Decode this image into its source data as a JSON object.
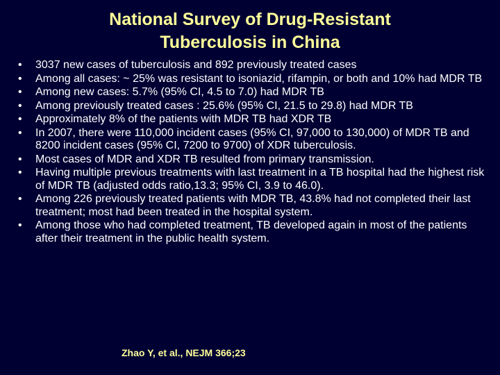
{
  "title": {
    "line1": "National Survey of Drug-Resistant",
    "line2": "Tuberculosis in China"
  },
  "bullet_symbol": "•",
  "bullets": [
    "3037 new cases of tuberculosis and 892 previously treated cases",
    "Among all cases: ~  25% was resistant to isoniazid, rifampin, or both and 10% had MDR TB",
    "Among new cases: 5.7% (95% CI, 4.5 to 7.0)  had MDR TB",
    "Among previously treated cases : 25.6% (95% CI, 21.5 to 29.8) had MDR TB",
    "Approximately 8% of the patients with MDR TB had XDR TB",
    "In 2007, there were 110,000 incident cases (95% CI, 97,000 to 130,000) of MDR TB and 8200 incident cases (95% CI, 7200 to 9700) of XDR tuberculosis.",
    "Most  cases of MDR and XDR TB resulted from primary transmission.",
    "Having multiple previous treatments with last treatment in a TB hospital had the highest risk of MDR TB (adjusted odds ratio,13.3; 95% CI, 3.9 to 46.0).",
    "Among 226 previously treated patients with MDR TB, 43.8% had not completed their last treatment; most had been treated in the hospital system.",
    "Among those who had completed treatment, TB developed again in most of the patients after their treatment in the public health system."
  ],
  "citation": "Zhao Y, et al., NEJM 366;23",
  "colors": {
    "background": "#000033",
    "title": "#ffff99",
    "body_text": "#ffffff",
    "citation": "#ffff99"
  }
}
